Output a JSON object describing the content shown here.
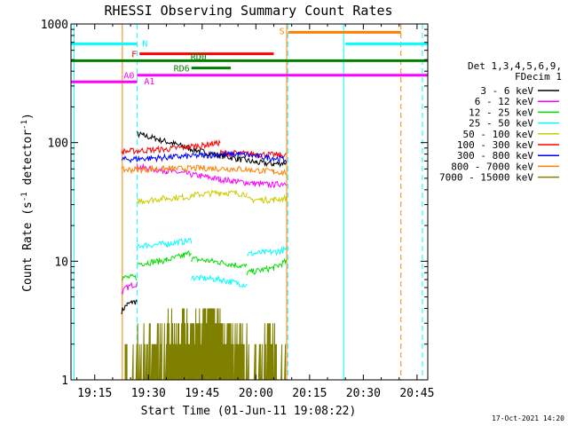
{
  "chart_data": {
    "type": "line",
    "title": "RHESSI Observing Summary Count Rates",
    "xlabel": "Start Time (01-Jun-11 19:08:22)",
    "ylabel_main": "Count Rate (s",
    "ylabel_sup1": "-1",
    "ylabel_mid": " detector",
    "ylabel_sup2": "-1",
    "ylabel_end": ")",
    "yscale": "log",
    "ylim": [
      1,
      1000
    ],
    "xlim_minutes": [
      1148.37,
      1248.0
    ],
    "x_ticks": [
      {
        "minutes": 1155,
        "label": "19:15"
      },
      {
        "minutes": 1170,
        "label": "19:30"
      },
      {
        "minutes": 1185,
        "label": "19:45"
      },
      {
        "minutes": 1200,
        "label": "20:00"
      },
      {
        "minutes": 1215,
        "label": "20:15"
      },
      {
        "minutes": 1230,
        "label": "20:30"
      },
      {
        "minutes": 1245,
        "label": "20:45"
      }
    ],
    "y_ticks": [
      {
        "value": 1,
        "label": "1"
      },
      {
        "value": 10,
        "label": "10"
      },
      {
        "value": 100,
        "label": "100"
      },
      {
        "value": 1000,
        "label": "1000"
      }
    ],
    "legend_header": [
      "Det 1,3,4,5,6,9,",
      "FDecim 1"
    ],
    "series": [
      {
        "name": "3 - 6 keV",
        "color": "#000000",
        "segments": [
          {
            "t": [
              1162.5,
              1164.0,
              1165.5,
              1166.8
            ],
            "v": [
              3.8,
              4.3,
              4.5,
              4.6
            ]
          },
          {
            "t": [
              1166.8,
              1168.5,
              1172,
              1176,
              1180,
              1185,
              1190,
              1195,
              1200,
              1205,
              1208.5
            ],
            "v": [
              118,
              115,
              108,
              100,
              92,
              84,
              78,
              73,
              68,
              66,
              68
            ]
          }
        ]
      },
      {
        "name": "6 - 12 keV",
        "color": "#ff00ff",
        "segments": [
          {
            "t": [
              1162.5,
              1164.0,
              1165.5,
              1166.8
            ],
            "v": [
              5.5,
              6.0,
              6.3,
              6.5
            ]
          },
          {
            "t": [
              1166.8,
              1170,
              1175,
              1180,
              1185,
              1190,
              1195,
              1200,
              1205,
              1208.5
            ],
            "v": [
              63,
              60,
              58,
              55,
              52,
              49,
              47,
              45,
              44,
              46
            ]
          }
        ]
      },
      {
        "name": "12 - 25 keV",
        "color": "#00dd00",
        "segments": [
          {
            "t": [
              1162.5,
              1166.8
            ],
            "v": [
              7.3,
              7.3
            ]
          },
          {
            "t": [
              1166.8,
              1175,
              1180,
              1182
            ],
            "v": [
              9.5,
              10.2,
              11.2,
              12.0
            ]
          },
          {
            "t": [
              1182,
              1190,
              1197.5
            ],
            "v": [
              10.5,
              9.8,
              9.0
            ]
          },
          {
            "t": [
              1197.5,
              1205,
              1208.5
            ],
            "v": [
              8.0,
              8.8,
              10.0
            ]
          }
        ]
      },
      {
        "name": "25 - 50 keV",
        "color": "#00ffff",
        "segments": [
          {
            "t": [
              1166.8,
              1175,
              1182
            ],
            "v": [
              13.5,
              14.0,
              15.0
            ]
          },
          {
            "t": [
              1182,
              1190,
              1197.5
            ],
            "v": [
              7.3,
              7.0,
              6.3
            ]
          },
          {
            "t": [
              1197.5,
              1205,
              1208.5
            ],
            "v": [
              11.5,
              12.0,
              12.5
            ]
          }
        ]
      },
      {
        "name": "50 - 100 keV",
        "color": "#cccc00",
        "segments": [
          {
            "t": [
              1166.8,
              1175,
              1182
            ],
            "v": [
              32,
              34,
              35
            ]
          },
          {
            "t": [
              1182,
              1190,
              1197.5
            ],
            "v": [
              36,
              38,
              37
            ]
          },
          {
            "t": [
              1197.5,
              1205,
              1208.5
            ],
            "v": [
              33,
              33,
              34
            ]
          }
        ]
      },
      {
        "name": "100 - 300 keV",
        "color": "#ff0000",
        "segments": [
          {
            "t": [
              1162.5,
              1175,
              1185,
              1190
            ],
            "v": [
              84,
              88,
              95,
              100
            ]
          },
          {
            "t": [
              1190,
              1200,
              1208.5
            ],
            "v": [
              82,
              80,
              78
            ]
          }
        ]
      },
      {
        "name": "300 - 800 keV",
        "color": "#0000ff",
        "segments": [
          {
            "t": [
              1162.5,
              1175,
              1185,
              1195,
              1205,
              1208.5
            ],
            "v": [
              72,
              75,
              78,
              80,
              74,
              72
            ]
          }
        ]
      },
      {
        "name": "800 - 7000 keV",
        "color": "#ff8000",
        "segments": [
          {
            "t": [
              1162.5,
              1175,
              1185,
              1195,
              1205,
              1208.5
            ],
            "v": [
              59,
              60,
              61,
              60,
              57,
              56
            ]
          }
        ]
      },
      {
        "name": "7000 - 15000 keV",
        "color": "#808000",
        "segments": [
          {
            "t": [
              1163.5,
              1167,
              1172,
              1178,
              1183,
              1187,
              1192,
              1196,
              1200,
              1204,
              1208.5
            ],
            "v": [
              1.0,
              2.0,
              2.0,
              3.0,
              3.0,
              4.0,
              3.0,
              2.0,
              1.0,
              2.0,
              1.0
            ]
          }
        ]
      }
    ],
    "vertical_lines": [
      {
        "minutes": 1149.2,
        "color": "#00ffff",
        "style": "solid"
      },
      {
        "minutes": 1162.7,
        "color": "#ff8000",
        "style": "solid"
      },
      {
        "minutes": 1166.8,
        "color": "#00ffff",
        "style": "dashed"
      },
      {
        "minutes": 1208.6,
        "color": "#ff8000",
        "style": "solid"
      },
      {
        "minutes": 1208.9,
        "color": "#00ffff",
        "style": "dashed"
      },
      {
        "minutes": 1224.5,
        "color": "#00ffff",
        "style": "solid"
      },
      {
        "minutes": 1240.5,
        "color": "#ff8000",
        "style": "dashed"
      },
      {
        "minutes": 1246.5,
        "color": "#00ffff",
        "style": "dashed"
      }
    ],
    "flag_bars": [
      {
        "label": "N",
        "color": "#00ffff",
        "segments": [
          [
            1148.37,
            1166.8
          ],
          [
            1225,
            1248.0
          ]
        ],
        "level": 680
      },
      {
        "label": "F",
        "color": "#ff0000",
        "segments": [
          [
            1167.5,
            1205
          ]
        ],
        "level": 560
      },
      {
        "label": "RD0",
        "color": "#008000",
        "segments": [
          [
            1148.37,
            1248.0
          ]
        ],
        "level": 490
      },
      {
        "label": "RD6",
        "color": "#008000",
        "segments": [
          [
            1182,
            1193
          ]
        ],
        "level": 425
      },
      {
        "label": "A0",
        "color": "#ff00ff",
        "segments": [
          [
            1166.8,
            1248.0
          ]
        ],
        "level": 370
      },
      {
        "label": "A1",
        "color": "#ff00ff",
        "segments": [
          [
            1148.37,
            1166.8
          ]
        ],
        "level": 325
      },
      {
        "label": "S",
        "color": "#ff8000",
        "segments": [
          [
            1209,
            1240.5
          ]
        ],
        "level": 850
      }
    ],
    "grid": false,
    "legend_position": "right"
  },
  "footer": {
    "date_stamp": "17-Oct-2021 14:20"
  }
}
